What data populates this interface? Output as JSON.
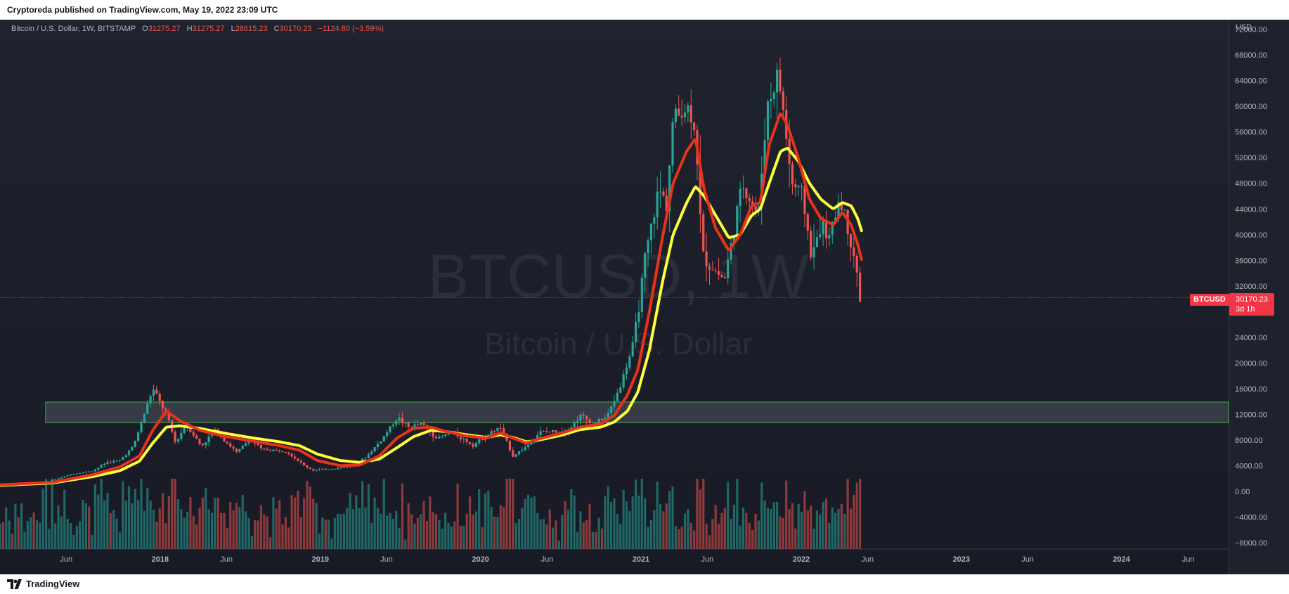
{
  "header": {
    "published_by": "Cryptoreda published on TradingView.com, May 19, 2022 23:09 UTC"
  },
  "footer": {
    "brand": "TradingView"
  },
  "legend": {
    "symbol": "Bitcoin / U.S. Dollar, 1W, BITSTAMP",
    "open_label": "O",
    "open": "31275.27",
    "high_label": "H",
    "high": "31275.27",
    "low_label": "L",
    "low": "28615.23",
    "close_label": "C",
    "close": "30170.23",
    "change": "−1124.80 (−3.59%)"
  },
  "watermark": {
    "ticker": "BTCUSD, 1W",
    "name": "Bitcoin / U.S. Dollar"
  },
  "price_axis": {
    "currency": "USD",
    "last_price": "30170.23",
    "countdown": "3d 1h",
    "ticker_tag": "BTCUSD"
  },
  "colors": {
    "background": "#1e222d",
    "up": "#26a69a",
    "down": "#ef5350",
    "ema_fast": "#e8321a",
    "ema_slow": "#ffff3b",
    "zone_fill": "#50535e",
    "zone_border": "#4caf50",
    "axis_text": "#b2b5be"
  },
  "chart_data": {
    "type": "candlestick",
    "timeframe": "1W",
    "exchange": "BITSTAMP",
    "y_ticks": [
      "72000.00",
      "68000.00",
      "64000.00",
      "60000.00",
      "56000.00",
      "52000.00",
      "48000.00",
      "44000.00",
      "40000.00",
      "36000.00",
      "32000.00",
      "24000.00",
      "20000.00",
      "16000.00",
      "12000.00",
      "8000.00",
      "4000.00",
      "0.00",
      "−4000.00",
      "−8000.00"
    ],
    "ylim": [
      -9000,
      73500
    ],
    "x_ticks": [
      "Jun",
      "2018",
      "Jun",
      "2019",
      "Jun",
      "2020",
      "Jun",
      "2021",
      "Jun",
      "2022",
      "Jun",
      "2023",
      "Jun",
      "2024",
      "Jun"
    ],
    "x_tick_dates": [
      "2017-06-01",
      "2018-01-01",
      "2018-06-01",
      "2019-01-01",
      "2019-06-01",
      "2020-01-01",
      "2020-06-01",
      "2021-01-01",
      "2021-06-01",
      "2022-01-01",
      "2022-06-01",
      "2023-01-01",
      "2023-06-01",
      "2024-01-01",
      "2024-06-01"
    ],
    "x_range": [
      "2017-01-01",
      "2024-09-01"
    ],
    "last_price": 30170.23,
    "zone": {
      "low": 10700,
      "high": 13900,
      "start": "2017-04-15",
      "end": "2024-09-01"
    },
    "price_path": [
      [
        "2017-01-01",
        1000
      ],
      [
        "2017-04-01",
        1200
      ],
      [
        "2017-05-15",
        2000
      ],
      [
        "2017-06-15",
        2700
      ],
      [
        "2017-08-01",
        3200
      ],
      [
        "2017-09-01",
        4500
      ],
      [
        "2017-10-01",
        4800
      ],
      [
        "2017-11-01",
        7000
      ],
      [
        "2017-12-15",
        16000
      ],
      [
        "2018-01-15",
        12000
      ],
      [
        "2018-02-05",
        7500
      ],
      [
        "2018-03-01",
        10500
      ],
      [
        "2018-04-05",
        7000
      ],
      [
        "2018-05-05",
        9500
      ],
      [
        "2018-06-25",
        6000
      ],
      [
        "2018-07-25",
        8200
      ],
      [
        "2018-08-20",
        6500
      ],
      [
        "2018-10-15",
        6300
      ],
      [
        "2018-11-25",
        4000
      ],
      [
        "2018-12-15",
        3300
      ],
      [
        "2019-02-01",
        3500
      ],
      [
        "2019-03-15",
        4000
      ],
      [
        "2019-04-15",
        5300
      ],
      [
        "2019-05-20",
        8000
      ],
      [
        "2019-06-25",
        11500
      ],
      [
        "2019-07-20",
        10000
      ],
      [
        "2019-08-20",
        10500
      ],
      [
        "2019-09-25",
        8200
      ],
      [
        "2019-10-28",
        9200
      ],
      [
        "2019-12-15",
        7200
      ],
      [
        "2020-01-15",
        8700
      ],
      [
        "2020-02-15",
        10000
      ],
      [
        "2020-03-15",
        5500
      ],
      [
        "2020-04-15",
        7000
      ],
      [
        "2020-05-15",
        9200
      ],
      [
        "2020-06-15",
        9300
      ],
      [
        "2020-07-20",
        9600
      ],
      [
        "2020-08-15",
        11800
      ],
      [
        "2020-09-15",
        10600
      ],
      [
        "2020-10-15",
        11500
      ],
      [
        "2020-11-15",
        16500
      ],
      [
        "2020-12-15",
        23000
      ],
      [
        "2021-01-10",
        36000
      ],
      [
        "2021-02-10",
        47000
      ],
      [
        "2021-02-28",
        45000
      ],
      [
        "2021-03-15",
        58000
      ],
      [
        "2021-04-15",
        60000
      ],
      [
        "2021-05-05",
        57000
      ],
      [
        "2021-05-20",
        37000
      ],
      [
        "2021-06-10",
        35000
      ],
      [
        "2021-07-10",
        33000
      ],
      [
        "2021-07-30",
        40000
      ],
      [
        "2021-08-20",
        48000
      ],
      [
        "2021-09-10",
        45000
      ],
      [
        "2021-09-25",
        43000
      ],
      [
        "2021-10-15",
        60000
      ],
      [
        "2021-11-10",
        65000
      ],
      [
        "2021-11-25",
        57000
      ],
      [
        "2021-12-10",
        48000
      ],
      [
        "2022-01-05",
        46000
      ],
      [
        "2022-01-25",
        36000
      ],
      [
        "2022-02-15",
        42000
      ],
      [
        "2022-03-05",
        39000
      ],
      [
        "2022-03-30",
        46000
      ],
      [
        "2022-04-20",
        40000
      ],
      [
        "2022-05-05",
        36000
      ],
      [
        "2022-05-12",
        30000
      ],
      [
        "2022-05-19",
        30170
      ]
    ],
    "ema_fast_path": [
      [
        "2017-01-01",
        1000
      ],
      [
        "2017-05-01",
        1400
      ],
      [
        "2017-08-01",
        2600
      ],
      [
        "2017-10-01",
        3800
      ],
      [
        "2017-11-15",
        5500
      ],
      [
        "2017-12-15",
        9500
      ],
      [
        "2018-01-15",
        12500
      ],
      [
        "2018-02-15",
        11000
      ],
      [
        "2018-04-01",
        9500
      ],
      [
        "2018-06-01",
        8500
      ],
      [
        "2018-08-01",
        7800
      ],
      [
        "2018-10-01",
        7100
      ],
      [
        "2018-11-15",
        6400
      ],
      [
        "2018-12-25",
        4800
      ],
      [
        "2019-02-15",
        4000
      ],
      [
        "2019-04-01",
        4100
      ],
      [
        "2019-05-15",
        5500
      ],
      [
        "2019-06-25",
        8300
      ],
      [
        "2019-08-01",
        9800
      ],
      [
        "2019-09-10",
        10000
      ],
      [
        "2019-10-15",
        9300
      ],
      [
        "2019-12-01",
        8600
      ],
      [
        "2020-01-15",
        8300
      ],
      [
        "2020-02-15",
        9100
      ],
      [
        "2020-03-15",
        8300
      ],
      [
        "2020-04-15",
        7500
      ],
      [
        "2020-05-15",
        8200
      ],
      [
        "2020-07-01",
        9000
      ],
      [
        "2020-08-15",
        10000
      ],
      [
        "2020-10-01",
        10500
      ],
      [
        "2020-11-01",
        11800
      ],
      [
        "2020-12-01",
        15000
      ],
      [
        "2020-12-25",
        19000
      ],
      [
        "2021-01-20",
        28000
      ],
      [
        "2021-02-20",
        40000
      ],
      [
        "2021-03-15",
        48000
      ],
      [
        "2021-04-15",
        53000
      ],
      [
        "2021-05-05",
        55000
      ],
      [
        "2021-05-25",
        47000
      ],
      [
        "2021-06-20",
        41000
      ],
      [
        "2021-07-20",
        37500
      ],
      [
        "2021-08-15",
        40000
      ],
      [
        "2021-09-10",
        44500
      ],
      [
        "2021-09-30",
        45000
      ],
      [
        "2021-10-20",
        54000
      ],
      [
        "2021-11-15",
        59000
      ],
      [
        "2021-12-01",
        57000
      ],
      [
        "2021-12-25",
        52000
      ],
      [
        "2022-01-20",
        45500
      ],
      [
        "2022-02-15",
        42500
      ],
      [
        "2022-03-15",
        41500
      ],
      [
        "2022-04-05",
        43500
      ],
      [
        "2022-04-25",
        41500
      ],
      [
        "2022-05-10",
        38500
      ],
      [
        "2022-05-19",
        36000
      ]
    ],
    "ema_slow_path": [
      [
        "2017-01-01",
        900
      ],
      [
        "2017-05-01",
        1300
      ],
      [
        "2017-08-01",
        2300
      ],
      [
        "2017-10-01",
        3200
      ],
      [
        "2017-11-15",
        4700
      ],
      [
        "2017-12-15",
        7500
      ],
      [
        "2018-01-15",
        10000
      ],
      [
        "2018-02-15",
        10200
      ],
      [
        "2018-04-01",
        9800
      ],
      [
        "2018-06-01",
        9000
      ],
      [
        "2018-08-01",
        8300
      ],
      [
        "2018-10-01",
        7700
      ],
      [
        "2018-11-15",
        7100
      ],
      [
        "2018-12-25",
        5800
      ],
      [
        "2019-02-15",
        4800
      ],
      [
        "2019-04-01",
        4500
      ],
      [
        "2019-05-15",
        5000
      ],
      [
        "2019-06-25",
        6800
      ],
      [
        "2019-08-01",
        8500
      ],
      [
        "2019-09-10",
        9500
      ],
      [
        "2019-10-15",
        9300
      ],
      [
        "2019-12-01",
        8800
      ],
      [
        "2020-01-15",
        8400
      ],
      [
        "2020-02-15",
        8800
      ],
      [
        "2020-03-15",
        8400
      ],
      [
        "2020-04-15",
        7700
      ],
      [
        "2020-05-15",
        8000
      ],
      [
        "2020-07-01",
        8700
      ],
      [
        "2020-08-15",
        9600
      ],
      [
        "2020-10-01",
        10000
      ],
      [
        "2020-11-01",
        10800
      ],
      [
        "2020-12-01",
        12500
      ],
      [
        "2020-12-25",
        15500
      ],
      [
        "2021-01-20",
        22000
      ],
      [
        "2021-02-20",
        33000
      ],
      [
        "2021-03-15",
        40000
      ],
      [
        "2021-04-15",
        45000
      ],
      [
        "2021-05-05",
        47500
      ],
      [
        "2021-05-25",
        46000
      ],
      [
        "2021-06-20",
        43000
      ],
      [
        "2021-07-20",
        39500
      ],
      [
        "2021-08-15",
        40000
      ],
      [
        "2021-09-10",
        43000
      ],
      [
        "2021-09-30",
        44000
      ],
      [
        "2021-10-20",
        48000
      ],
      [
        "2021-11-15",
        53000
      ],
      [
        "2021-12-01",
        53500
      ],
      [
        "2021-12-25",
        51500
      ],
      [
        "2022-01-20",
        48000
      ],
      [
        "2022-02-15",
        45500
      ],
      [
        "2022-03-15",
        44000
      ],
      [
        "2022-04-05",
        45000
      ],
      [
        "2022-04-25",
        44500
      ],
      [
        "2022-05-10",
        42500
      ],
      [
        "2022-05-19",
        40500
      ]
    ]
  }
}
